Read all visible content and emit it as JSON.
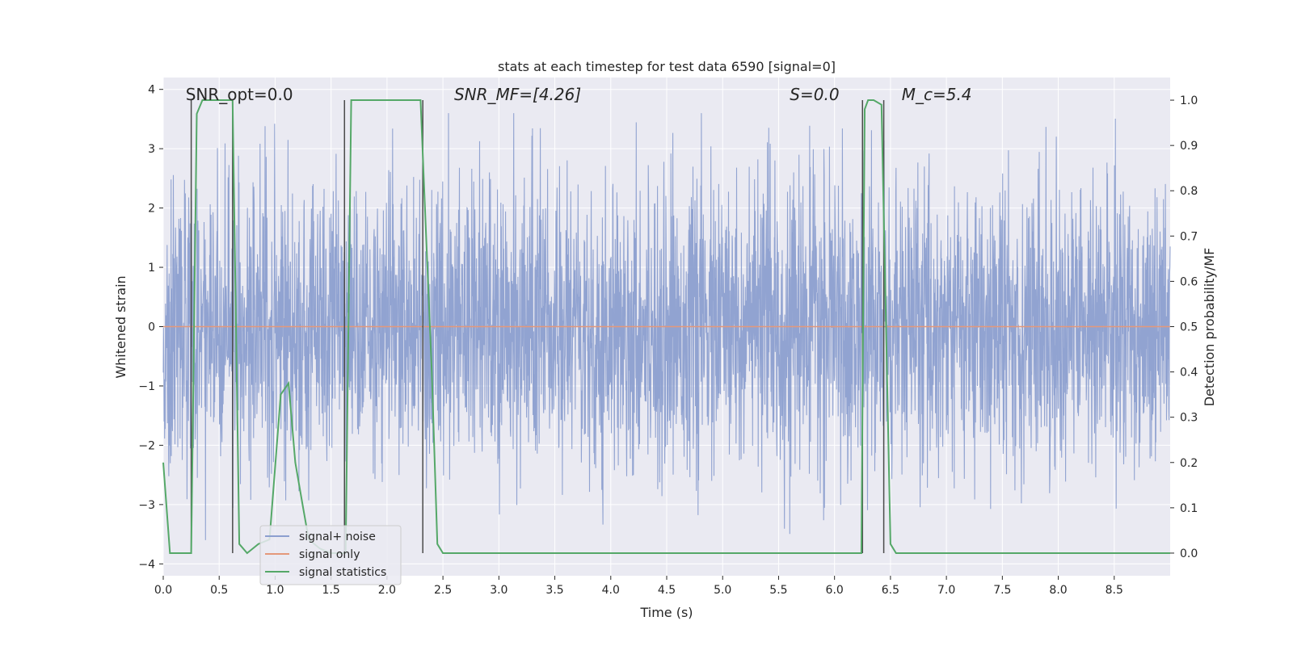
{
  "chart_data": {
    "type": "line",
    "title": "stats at each timestep for test data 6590 [signal=0]",
    "xlabel": "Time (s)",
    "ylabel_left": "Whitened strain",
    "ylabel_right": "Detection probability/MF",
    "xlim": [
      0,
      9.0
    ],
    "ylim_left": [
      -4.2,
      4.2
    ],
    "ylim_right": [
      -0.05,
      1.05
    ],
    "xticks": [
      0.0,
      0.5,
      1.0,
      1.5,
      2.0,
      2.5,
      3.0,
      3.5,
      4.0,
      4.5,
      5.0,
      5.5,
      6.0,
      6.5,
      7.0,
      7.5,
      8.0,
      8.5
    ],
    "xtick_labels": [
      "0.0",
      "0.5",
      "1.0",
      "1.5",
      "2.0",
      "2.5",
      "3.0",
      "3.5",
      "4.0",
      "4.5",
      "5.0",
      "5.5",
      "6.0",
      "6.5",
      "7.0",
      "7.5",
      "8.0",
      "8.5"
    ],
    "yticks_left": [
      -4,
      -3,
      -2,
      -1,
      0,
      1,
      2,
      3,
      4
    ],
    "ytick_labels_left": [
      "−4",
      "−3",
      "−2",
      "−1",
      "0",
      "1",
      "2",
      "3",
      "4"
    ],
    "yticks_right": [
      0.0,
      0.1,
      0.2,
      0.3,
      0.4,
      0.5,
      0.6,
      0.7,
      0.8,
      0.9,
      1.0
    ],
    "ytick_labels_right": [
      "0.0",
      "0.1",
      "0.2",
      "0.3",
      "0.4",
      "0.5",
      "0.6",
      "0.7",
      "0.8",
      "0.9",
      "1.0"
    ],
    "annotations": [
      {
        "text": "SNR_opt=0.0",
        "x": 0.2
      },
      {
        "text": "SNR_MF=[4.26]",
        "x": 2.6
      },
      {
        "text": "S=0.0",
        "x": 5.6
      },
      {
        "text": "M_c=5.4",
        "x": 6.6
      }
    ],
    "legend_position": "lower-left",
    "series": [
      {
        "name": "signal+ noise",
        "color": "#8c9fcf",
        "axis": "left",
        "kind": "noise",
        "sample_rate": 400,
        "std": 1.2,
        "range": [
          -3.6,
          3.6
        ]
      },
      {
        "name": "signal only",
        "color": "#e4987a",
        "axis": "left",
        "x": [
          0.0,
          9.0
        ],
        "y": [
          0.0,
          0.0
        ]
      },
      {
        "name": "signal statistics",
        "color": "#55a868",
        "axis": "right",
        "x": [
          0.0,
          0.06,
          0.12,
          0.25,
          0.3,
          0.35,
          0.4,
          0.45,
          0.55,
          0.6,
          0.62,
          0.68,
          0.75,
          0.85,
          0.95,
          1.05,
          1.12,
          1.18,
          1.25,
          1.3,
          1.4,
          1.5,
          1.6,
          1.63,
          1.68,
          1.75,
          2.0,
          2.25,
          2.3,
          2.35,
          2.4,
          2.45,
          2.5,
          2.6,
          3.0,
          4.0,
          5.0,
          6.0,
          6.24,
          6.27,
          6.3,
          6.35,
          6.42,
          6.5,
          6.55,
          6.6,
          7.0,
          8.0,
          9.0
        ],
        "y": [
          0.2,
          0.0,
          0.0,
          0.0,
          0.97,
          1.0,
          1.0,
          1.0,
          1.0,
          1.0,
          1.0,
          0.02,
          0.0,
          0.02,
          0.03,
          0.35,
          0.375,
          0.2,
          0.1,
          0.03,
          0.01,
          0.0,
          0.0,
          0.0,
          1.0,
          1.0,
          1.0,
          1.0,
          1.0,
          0.7,
          0.4,
          0.02,
          0.0,
          0.0,
          0.0,
          0.0,
          0.0,
          0.0,
          0.0,
          0.98,
          1.0,
          1.0,
          0.99,
          0.02,
          0.0,
          0.0,
          0.0,
          0.0,
          0.0
        ]
      }
    ],
    "vertical_lines": [
      0.25,
      0.62,
      1.62,
      2.32,
      6.25,
      6.44
    ],
    "vertical_line_color": "#4a4a4a"
  }
}
